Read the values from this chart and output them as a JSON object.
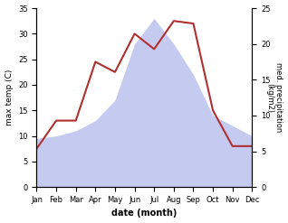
{
  "months": [
    "Jan",
    "Feb",
    "Mar",
    "Apr",
    "May",
    "Jun",
    "Jul",
    "Aug",
    "Sep",
    "Oct",
    "Nov",
    "Dec"
  ],
  "temp": [
    7.5,
    13.0,
    13.0,
    24.5,
    22.5,
    30.0,
    27.0,
    32.5,
    32.0,
    15.0,
    8.0,
    8.0
  ],
  "precip": [
    9.5,
    10.0,
    11.0,
    13.0,
    17.0,
    28.0,
    33.0,
    28.0,
    22.0,
    14.0,
    12.0,
    10.0
  ],
  "temp_color": "#b03030",
  "precip_fill_color": "#c5caf0",
  "ylabel_left": "max temp (C)",
  "ylabel_right": "med. precipitation\n(kg/m2)",
  "xlabel": "date (month)",
  "ylim_left": [
    0,
    35
  ],
  "ylim_right": [
    0,
    25
  ],
  "yticks_left": [
    0,
    5,
    10,
    15,
    20,
    25,
    30,
    35
  ],
  "yticks_right": [
    0,
    5,
    10,
    15,
    20,
    25
  ],
  "background_color": "#ffffff"
}
